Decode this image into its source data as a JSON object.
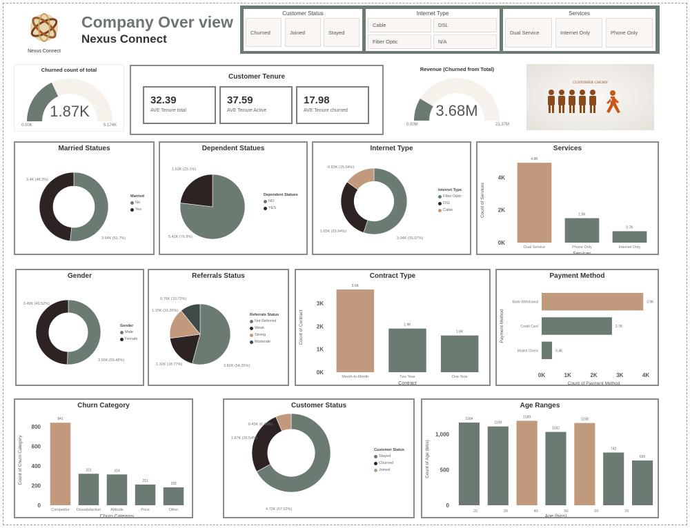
{
  "header": {
    "title": "Company Over view",
    "subtitle": "Nexus Connect",
    "logo_text": "Nexus Connect"
  },
  "slicers": {
    "customer_status": {
      "title": "Customer Status",
      "options": [
        "Churned",
        "Joined",
        "Stayed"
      ]
    },
    "internet_type": {
      "title": "Internet Type",
      "options": [
        "Cable",
        "DSL",
        "Fiber Optic",
        "N/A"
      ]
    },
    "services": {
      "title": "Services",
      "options": [
        "Dual Service",
        "Internet Only",
        "Phone Only"
      ]
    }
  },
  "gauges": [
    {
      "title": "Churned count of total",
      "value_label": "1.87K",
      "value": 1.87,
      "min": 0,
      "max": 5.174,
      "min_label": "0.00K",
      "max_label": "5.174K"
    },
    {
      "title": "Revenue (Churned from Total)",
      "value_label": "3.68M",
      "value": 3.68,
      "min": 0,
      "max": 21.37,
      "min_label": "0.00M",
      "max_label": "21.37M"
    }
  ],
  "tenure": {
    "title": "Customer Tenure",
    "cards": [
      {
        "value": "32.39",
        "label": "AVE Tenure total"
      },
      {
        "value": "37.59",
        "label": "AVE Tenure Active"
      },
      {
        "value": "17.98",
        "label": "AVE Tenure churned"
      }
    ]
  },
  "banner": {
    "text": "CUSTOMER CHURN"
  },
  "colors": {
    "green": "#6b7b71",
    "tan": "#c19a7e",
    "dark": "#2e2323",
    "slate": "#3e4a48",
    "track": "#f7f1ec"
  },
  "chart_data": [
    {
      "type": "donut",
      "title": "Married Statues",
      "legend_title": "Married",
      "labels": [
        "No",
        "Yes"
      ],
      "values": [
        3.64,
        3.4
      ],
      "data_labels": [
        "3.64K (51.7%)",
        "3.4K (48.3%)"
      ],
      "colors": [
        "#6b7b71",
        "#2e2323"
      ],
      "legend": "right"
    },
    {
      "type": "pie",
      "title": "Dependent Statues",
      "legend_title": "Dependent Statues",
      "labels": [
        "NO",
        "YES"
      ],
      "values": [
        5.42,
        1.63
      ],
      "data_labels": [
        "5.42K (76.9%)",
        "1.63K (23.1%)"
      ],
      "colors": [
        "#6b7b71",
        "#2e2323"
      ],
      "legend": "right"
    },
    {
      "type": "donut",
      "title": "Internet Type",
      "legend_title": "Internet Type",
      "labels": [
        "Fiber Optic",
        "DSL",
        "Cable"
      ],
      "values": [
        3.04,
        1.65,
        0.83
      ],
      "data_labels": [
        "3.04K (55.07%)",
        "1.65K (29.94%)",
        "0.83K (15.04%)"
      ],
      "colors": [
        "#6b7b71",
        "#2e2323",
        "#c19a7e"
      ],
      "legend": "right"
    },
    {
      "type": "bar",
      "title": "Services",
      "xlabel": "Services",
      "ylabel": "Count of Services",
      "categories": [
        "Dual Service",
        "Phone Only",
        "Internet Only"
      ],
      "values": [
        4900,
        1500,
        700
      ],
      "data_labels": [
        "4.9K",
        "1.5K",
        "0.7K"
      ],
      "colors": [
        "#c19a7e",
        "#6b7b71",
        "#6b7b71"
      ],
      "ylim": [
        0,
        5200
      ],
      "yticks": [
        0,
        2000,
        4000
      ],
      "ytick_labels": [
        "0K",
        "2K",
        "4K"
      ]
    },
    {
      "type": "donut",
      "title": "Gender",
      "legend_title": "Gender",
      "labels": [
        "Male",
        "Female"
      ],
      "values": [
        3.56,
        3.49
      ],
      "data_labels": [
        "3.56K (50.48%)",
        "3.49K (49.52%)"
      ],
      "colors": [
        "#6b7b71",
        "#2e2323"
      ],
      "legend": "right"
    },
    {
      "type": "pie",
      "title": "Referrals Status",
      "legend_title": "Referrals Status",
      "labels": [
        "Not Referred",
        "Weak",
        "Strong",
        "Moderate"
      ],
      "values": [
        3.82,
        1.32,
        1.15,
        0.76
      ],
      "data_labels": [
        "3.82K (54.25%)",
        "1.32K (18.77%)",
        "1.15K (16.26%)",
        "0.76K (10.72%)"
      ],
      "colors": [
        "#6b7b71",
        "#2e2323",
        "#c19a7e",
        "#3e4a48"
      ],
      "legend": "right"
    },
    {
      "type": "bar",
      "title": "Contract Type",
      "xlabel": "Contract",
      "ylabel": "Count of Contract",
      "categories": [
        "Month-to-Month",
        "Two Year",
        "One Year"
      ],
      "values": [
        3600,
        1900,
        1600
      ],
      "data_labels": [
        "3.6K",
        "1.9K",
        "1.6K"
      ],
      "colors": [
        "#c19a7e",
        "#6b7b71",
        "#6b7b71"
      ],
      "ylim": [
        0,
        3900
      ],
      "yticks": [
        0,
        1000,
        2000,
        3000
      ],
      "ytick_labels": [
        "0K",
        "1K",
        "2K",
        "3K"
      ]
    },
    {
      "type": "hbar",
      "title": "Payment Method",
      "xlabel": "Count of Payment Method",
      "ylabel": "Payment Method",
      "categories": [
        "Bank Withdrawal",
        "Credit Card",
        "Mailed Check"
      ],
      "values": [
        3900,
        2700,
        400
      ],
      "data_labels": [
        "3.9K",
        "2.7K",
        "0.4K"
      ],
      "colors": [
        "#c19a7e",
        "#6b7b71",
        "#6b7b71"
      ],
      "xlim": [
        0,
        4000
      ],
      "xticks": [
        0,
        1000,
        2000,
        3000,
        4000
      ],
      "xtick_labels": [
        "0K",
        "1K",
        "2K",
        "3K",
        "4K"
      ]
    },
    {
      "type": "bar",
      "title": "Churn Category",
      "xlabel": "Churn Category",
      "ylabel": "Count of Churn Category",
      "categories": [
        "Competitor",
        "Dissatisfaction",
        "Attitude",
        "Price",
        "Other"
      ],
      "values": [
        841,
        321,
        314,
        211,
        182
      ],
      "data_labels": [
        "841",
        "321",
        "314",
        "211",
        "182"
      ],
      "colors": [
        "#c19a7e",
        "#6b7b71",
        "#6b7b71",
        "#6b7b71",
        "#6b7b71"
      ],
      "ylim": [
        0,
        920
      ],
      "yticks": [
        0,
        200,
        400,
        600,
        800
      ],
      "ytick_labels": [
        "0",
        "200",
        "400",
        "600",
        "800"
      ]
    },
    {
      "type": "donut",
      "title": "Customer Status",
      "legend_title": "Customer Status",
      "labels": [
        "Stayed",
        "Churned",
        "Joined"
      ],
      "values": [
        4.72,
        1.87,
        0.45
      ],
      "data_labels": [
        "4.72K (67.02%)",
        "1.87K (26.54%)",
        "0.45K (6.45%)"
      ],
      "colors": [
        "#6b7b71",
        "#2e2323",
        "#c19a7e"
      ],
      "legend": "right"
    },
    {
      "type": "bar",
      "title": "Age Ranges",
      "xlabel": "Age (bins)",
      "ylabel": "Count of Age (bins)",
      "categories": [
        "",
        "",
        "",
        "",
        "",
        "",
        ""
      ],
      "values": [
        1164,
        1109,
        1189,
        1032,
        1158,
        742,
        630
      ],
      "data_labels": [
        "1164",
        "1109",
        "1189",
        "1032",
        "1158",
        "742",
        "630"
      ],
      "colors": [
        "#6b7b71",
        "#6b7b71",
        "#c19a7e",
        "#6b7b71",
        "#c19a7e",
        "#6b7b71",
        "#6b7b71"
      ],
      "ylim": [
        0,
        1300
      ],
      "yticks": [
        0,
        500,
        1000
      ],
      "ytick_labels": [
        "0",
        "500",
        "1,000"
      ],
      "xtick_labels": [
        "20",
        "30",
        "40",
        "50",
        "60",
        "70"
      ]
    }
  ]
}
